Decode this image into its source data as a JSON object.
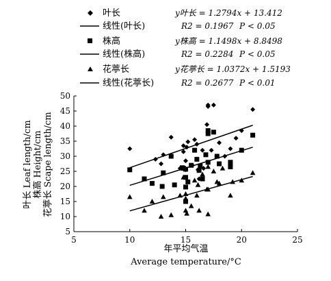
{
  "chart_data": {
    "type": "scatter",
    "xlabel_cn": "年平均气温",
    "xlabel_en": "Average temperature/°C",
    "ylabels": [
      "叶长 Leaf length/cm",
      "株高 Height/cm",
      "花葶长 Scape length/cm"
    ],
    "xlim": [
      5,
      25
    ],
    "ylim": [
      5,
      50
    ],
    "xticks": [
      5,
      10,
      15,
      20,
      25
    ],
    "yticks": [
      5,
      10,
      15,
      20,
      25,
      30,
      35,
      40,
      45,
      50
    ],
    "grid": false,
    "legend_position": "top-left",
    "series": [
      {
        "name": "叶长",
        "marker": "diamond",
        "fit_label": "线性(叶长)",
        "equation": "y叶长 = 1.2794x + 13.412",
        "r2_text": "R2 = 0.1967",
        "p_text": "P < 0.05",
        "slope": 1.2794,
        "intercept": 13.412,
        "points": [
          [
            10,
            32.5
          ],
          [
            12.3,
            29
          ],
          [
            12.8,
            27.5
          ],
          [
            13,
            30.5
          ],
          [
            13.7,
            36.3
          ],
          [
            14.5,
            26
          ],
          [
            14.8,
            31.5
          ],
          [
            14.8,
            33.5
          ],
          [
            15,
            25.5
          ],
          [
            15,
            28.5
          ],
          [
            15.1,
            33
          ],
          [
            15.2,
            34.8
          ],
          [
            15.6,
            27
          ],
          [
            15.8,
            35.5
          ],
          [
            16,
            34
          ],
          [
            16.1,
            25.5
          ],
          [
            16.2,
            22.5
          ],
          [
            16.5,
            32
          ],
          [
            16.6,
            26
          ],
          [
            16.9,
            40.5
          ],
          [
            17,
            46.5
          ],
          [
            17,
            47
          ],
          [
            17.3,
            32
          ],
          [
            17.5,
            47
          ],
          [
            18,
            34.5
          ],
          [
            18.5,
            30
          ],
          [
            19,
            32.5
          ],
          [
            19.5,
            36
          ],
          [
            20,
            38.5
          ],
          [
            21,
            45.5
          ]
        ]
      },
      {
        "name": "株高",
        "marker": "square",
        "fit_label": "线性(株高)",
        "equation": "y株高 = 1.1498x + 8.8498",
        "r2_text": "R2 = 0.2284",
        "p_text": "P < 0.05",
        "slope": 1.1498,
        "intercept": 8.8498,
        "points": [
          [
            10,
            25.5
          ],
          [
            11.3,
            22.5
          ],
          [
            12,
            21
          ],
          [
            12.9,
            20
          ],
          [
            13,
            24.5
          ],
          [
            13.7,
            30
          ],
          [
            14,
            20.5
          ],
          [
            14.7,
            26.2
          ],
          [
            14.8,
            26
          ],
          [
            15,
            19.8
          ],
          [
            15,
            23
          ],
          [
            15,
            25.7
          ],
          [
            15,
            15
          ],
          [
            15.2,
            21.5
          ],
          [
            15.5,
            27
          ],
          [
            15.8,
            32
          ],
          [
            16,
            29
          ],
          [
            16.2,
            25.3
          ],
          [
            16.3,
            26.8
          ],
          [
            16.5,
            22.5
          ],
          [
            16.8,
            30.5
          ],
          [
            17,
            38.5
          ],
          [
            17,
            37.5
          ],
          [
            17,
            28
          ],
          [
            17.5,
            38
          ],
          [
            17.8,
            30
          ],
          [
            18,
            27.5
          ],
          [
            19,
            28
          ],
          [
            19,
            26.5
          ],
          [
            20,
            32
          ],
          [
            21,
            37
          ]
        ]
      },
      {
        "name": "花葶长",
        "marker": "triangle",
        "fit_label": "线性(花葶长)",
        "equation": "y花葶长 = 1.0372x + 1.5193",
        "r2_text": "R2 = 0.2677",
        "p_text": "P < 0.01",
        "slope": 1.0372,
        "intercept": 1.5193,
        "points": [
          [
            10,
            16.5
          ],
          [
            11.3,
            12
          ],
          [
            12,
            15
          ],
          [
            12.8,
            10
          ],
          [
            13,
            16.5
          ],
          [
            13.7,
            10.5
          ],
          [
            14.5,
            17
          ],
          [
            14.8,
            23
          ],
          [
            15,
            17.5
          ],
          [
            15,
            16
          ],
          [
            15,
            12
          ],
          [
            15.1,
            11
          ],
          [
            15.5,
            13.5
          ],
          [
            15.8,
            22
          ],
          [
            16,
            17
          ],
          [
            16.1,
            20.5
          ],
          [
            16.2,
            12
          ],
          [
            16.5,
            24
          ],
          [
            16.9,
            19
          ],
          [
            17,
            19
          ],
          [
            17,
            26.5
          ],
          [
            17,
            10.8
          ],
          [
            17.5,
            25
          ],
          [
            17.8,
            21.5
          ],
          [
            18,
            21
          ],
          [
            18.3,
            26
          ],
          [
            19,
            17
          ],
          [
            19.2,
            21.5
          ],
          [
            20,
            22
          ],
          [
            21,
            24.5
          ]
        ]
      }
    ]
  }
}
